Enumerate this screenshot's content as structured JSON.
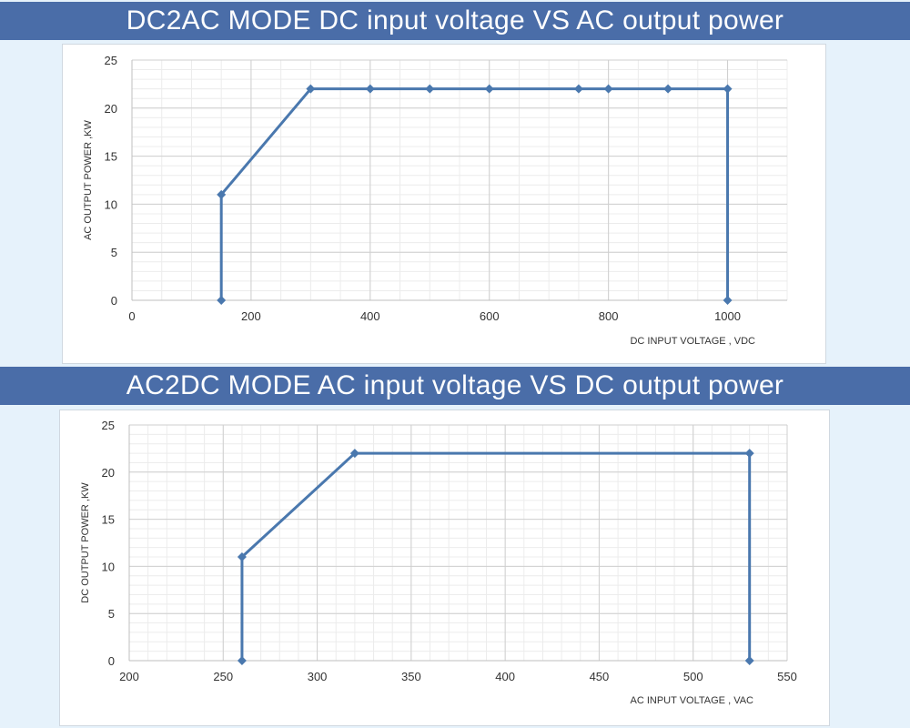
{
  "charts": [
    {
      "banner": "DC2AC MODE DC input voltage VS  AC output power",
      "accent": "#4a6da8",
      "line_color": "#4a78ae"
    },
    {
      "banner": "AC2DC MODE AC input voltage VS DC output power",
      "accent": "#4a6da8",
      "line_color": "#4a78ae"
    }
  ],
  "chart_data": [
    {
      "type": "line",
      "title": "DC2AC MODE DC input voltage VS  AC output power",
      "xlabel": "DC INPUT VOLTAGE , VDC",
      "ylabel": "AC OUTPUT POWER ,KW",
      "xlim": [
        0,
        1100
      ],
      "ylim": [
        0,
        25
      ],
      "xticks": [
        0,
        200,
        400,
        600,
        800,
        1000
      ],
      "yticks": [
        0,
        5,
        10,
        15,
        20,
        25
      ],
      "grid": true,
      "marker": "diamond",
      "series": [
        {
          "x": [
            150,
            150,
            300,
            400,
            500,
            600,
            750,
            800,
            900,
            1000,
            1000
          ],
          "y": [
            0,
            11,
            22,
            22,
            22,
            22,
            22,
            22,
            22,
            22,
            0
          ]
        }
      ]
    },
    {
      "type": "line",
      "title": "AC2DC MODE AC input voltage VS DC output power",
      "xlabel": "AC INPUT VOLTAGE , VAC",
      "ylabel": "DC OUTPUT POWER ,KW",
      "xlim": [
        200,
        550
      ],
      "ylim": [
        0,
        25
      ],
      "xticks": [
        200,
        250,
        300,
        350,
        400,
        450,
        500,
        550
      ],
      "yticks": [
        0,
        5,
        10,
        15,
        20,
        25
      ],
      "grid": true,
      "marker": "diamond",
      "series": [
        {
          "x": [
            260,
            260,
            320,
            530,
            530
          ],
          "y": [
            0,
            11,
            22,
            22,
            0
          ]
        }
      ]
    }
  ]
}
